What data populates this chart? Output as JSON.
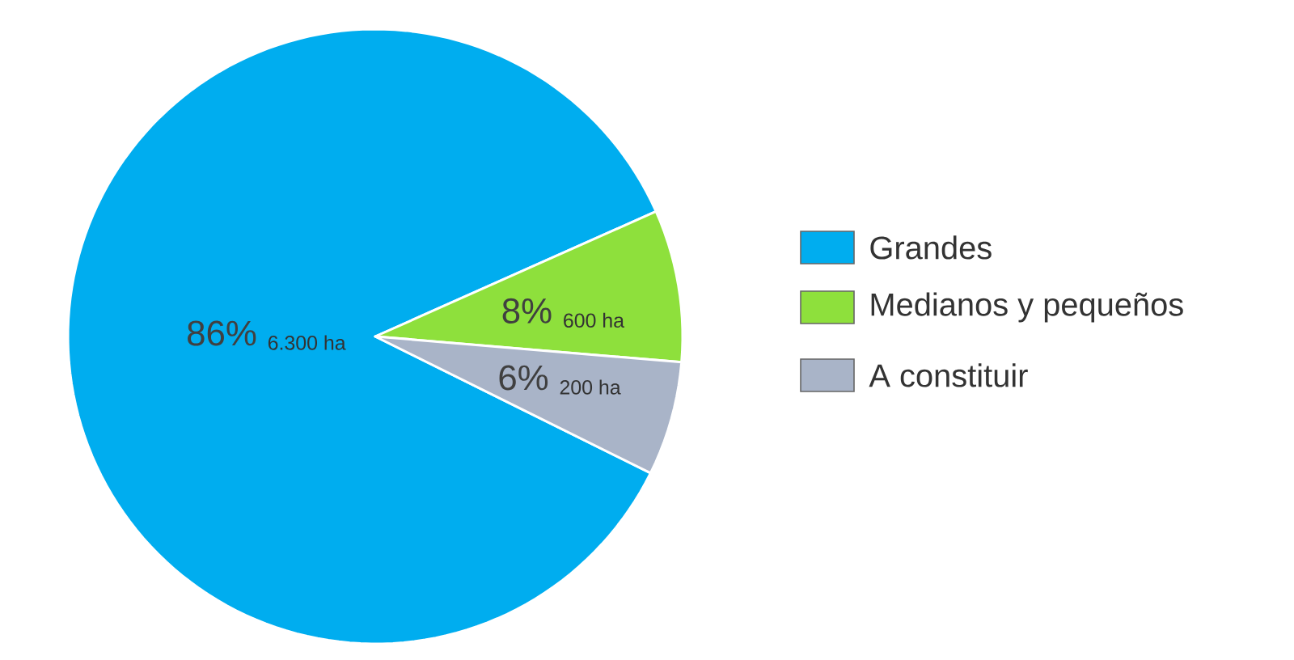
{
  "chart_data": {
    "type": "pie",
    "categories": [
      "Grandes",
      "Medianos y  pequeños",
      "A constituir"
    ],
    "values": [
      86,
      8,
      6
    ],
    "colors": [
      "#00adef",
      "#8ee03c",
      "#a9b4c8"
    ],
    "value_labels": [
      "86%",
      "8%",
      "6%"
    ],
    "annotations": [
      "6.300 ha",
      "600 ha",
      "200 ha"
    ],
    "legend": "right"
  }
}
